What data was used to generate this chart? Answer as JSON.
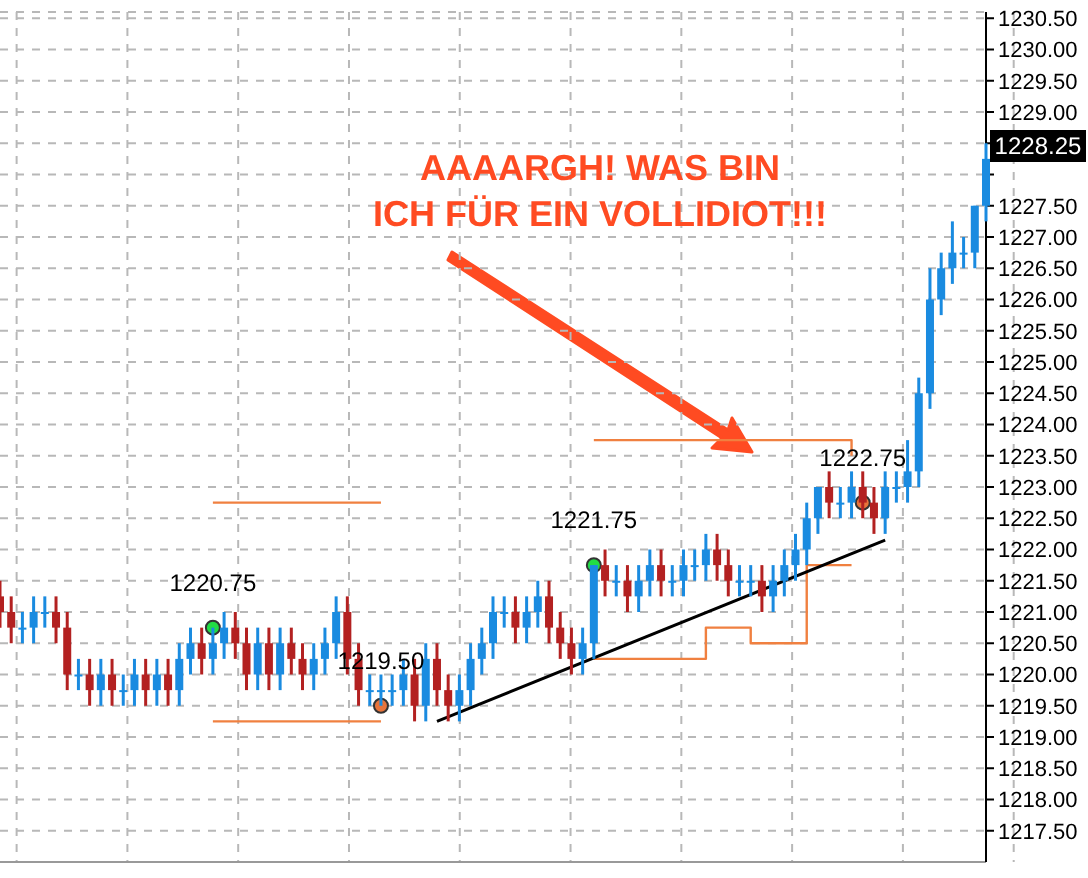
{
  "chart_data": {
    "type": "candlestick",
    "tick_labels": "y",
    "grid": true,
    "ylim": [
      1217.0,
      1230.6
    ],
    "yticks": [
      {
        "value": 1217.5,
        "label": "1217.50"
      },
      {
        "value": 1218,
        "label": "1218.00"
      },
      {
        "value": 1218.5,
        "label": "1218.50"
      },
      {
        "value": 1219,
        "label": "1219.00"
      },
      {
        "value": 1219.5,
        "label": "1219.50"
      },
      {
        "value": 1220,
        "label": "1220.00"
      },
      {
        "value": 1220.5,
        "label": "1220.50"
      },
      {
        "value": 1221,
        "label": "1221.00"
      },
      {
        "value": 1221.5,
        "label": "1221.50"
      },
      {
        "value": 1222,
        "label": "1222.00"
      },
      {
        "value": 1222.5,
        "label": "1222.50"
      },
      {
        "value": 1223,
        "label": "1223.00"
      },
      {
        "value": 1223.5,
        "label": "1223.50"
      },
      {
        "value": 1224,
        "label": "1224.00"
      },
      {
        "value": 1224.5,
        "label": "1224.50"
      },
      {
        "value": 1225,
        "label": "1225.00"
      },
      {
        "value": 1225.5,
        "label": "1225.50"
      },
      {
        "value": 1226,
        "label": "1226.00"
      },
      {
        "value": 1226.5,
        "label": "1226.50"
      },
      {
        "value": 1227,
        "label": "1227.00"
      },
      {
        "value": 1227.5,
        "label": "1227.50"
      },
      {
        "value": 1228,
        "label": null
      },
      {
        "value": 1228.5,
        "label": null
      },
      {
        "value": 1229,
        "label": "1229.00"
      },
      {
        "value": 1229.5,
        "label": "1229.50"
      },
      {
        "value": 1230,
        "label": "1230.00"
      },
      {
        "value": 1230.5,
        "label": "1230.50"
      }
    ],
    "categories": [
      null,
      null,
      null,
      null,
      null,
      null,
      null,
      null,
      null,
      null,
      null,
      null,
      null,
      null,
      null,
      null,
      null,
      null,
      null,
      null,
      null,
      null,
      null,
      null,
      null,
      null,
      null,
      null,
      null,
      null,
      null,
      null,
      null,
      null,
      null,
      null,
      null,
      null,
      null,
      null,
      null,
      null,
      null,
      null,
      null,
      null,
      null,
      null,
      null,
      null,
      null,
      null,
      null,
      null,
      null,
      null,
      null,
      null,
      null,
      null,
      null,
      null,
      null,
      null,
      null,
      null,
      null,
      null,
      null,
      null,
      null,
      null,
      null,
      null,
      null,
      null,
      null,
      null,
      null,
      null,
      null,
      null,
      null,
      null,
      null,
      null,
      null,
      null,
      null
    ],
    "annotations": [
      "AAAARGH! WAS BIN\nICH FÜR EIN VOLLIDIOT!!!",
      "1228.25"
    ],
    "series": [
      {
        "ohlc": [
          [
            1221.25,
            1221.5,
            1220.75,
            1221.0
          ],
          [
            1221.0,
            1221.25,
            1220.5,
            1220.75
          ],
          [
            1220.75,
            1221.0,
            1220.5,
            1220.75
          ],
          [
            1220.75,
            1221.25,
            1220.5,
            1221.0
          ],
          [
            1221.0,
            1221.25,
            1220.75,
            1221.0
          ],
          [
            1221.0,
            1221.25,
            1220.5,
            1220.75
          ],
          [
            1220.75,
            1221.0,
            1219.75,
            1220.0
          ],
          [
            1220.0,
            1220.25,
            1219.75,
            1220.0
          ],
          [
            1220.0,
            1220.25,
            1219.5,
            1219.75
          ],
          [
            1219.75,
            1220.25,
            1219.5,
            1220.0
          ],
          [
            1220.0,
            1220.25,
            1219.5,
            1219.75
          ],
          [
            1219.75,
            1220.0,
            1219.5,
            1219.75
          ],
          [
            1219.75,
            1220.25,
            1219.5,
            1220.0
          ],
          [
            1220.0,
            1220.25,
            1219.5,
            1219.75
          ],
          [
            1219.75,
            1220.25,
            1219.5,
            1220.0
          ],
          [
            1220.0,
            1220.25,
            1219.5,
            1219.75
          ],
          [
            1219.75,
            1220.5,
            1219.5,
            1220.25
          ],
          [
            1220.25,
            1220.75,
            1220.0,
            1220.5
          ],
          [
            1220.5,
            1220.75,
            1220.0,
            1220.25
          ],
          [
            1220.25,
            1220.75,
            1220.0,
            1220.5
          ],
          [
            1220.5,
            1221.0,
            1220.25,
            1220.75
          ],
          [
            1220.75,
            1221.0,
            1220.25,
            1220.5
          ],
          [
            1220.5,
            1220.75,
            1219.75,
            1220.0
          ],
          [
            1220.0,
            1220.75,
            1219.75,
            1220.5
          ],
          [
            1220.5,
            1220.75,
            1219.75,
            1220.0
          ],
          [
            1220.0,
            1220.75,
            1219.75,
            1220.5
          ],
          [
            1220.5,
            1220.75,
            1220.0,
            1220.25
          ],
          [
            1220.25,
            1220.5,
            1219.75,
            1220.0
          ],
          [
            1220.0,
            1220.5,
            1219.75,
            1220.25
          ],
          [
            1220.25,
            1220.75,
            1220.0,
            1220.5
          ],
          [
            1220.5,
            1221.25,
            1220.25,
            1221.0
          ],
          [
            1221.0,
            1221.25,
            1220.0,
            1220.25
          ],
          [
            1220.25,
            1220.5,
            1219.5,
            1219.75
          ],
          [
            1219.75,
            1220.0,
            1219.5,
            1219.75
          ],
          [
            1219.75,
            1220.0,
            1219.5,
            1219.75
          ],
          [
            1219.75,
            1220.0,
            1219.5,
            1219.75
          ],
          [
            1219.75,
            1220.25,
            1219.5,
            1220.0
          ],
          [
            1220.0,
            1220.25,
            1219.25,
            1219.5
          ],
          [
            1219.5,
            1220.5,
            1219.25,
            1220.25
          ],
          [
            1220.25,
            1220.5,
            1219.5,
            1219.75
          ],
          [
            1219.75,
            1220.0,
            1219.25,
            1219.5
          ],
          [
            1219.5,
            1220.0,
            1219.25,
            1219.75
          ],
          [
            1219.75,
            1220.5,
            1219.5,
            1220.25
          ],
          [
            1220.25,
            1220.75,
            1220.0,
            1220.5
          ],
          [
            1220.5,
            1221.25,
            1220.25,
            1221.0
          ],
          [
            1221.0,
            1221.25,
            1220.75,
            1221.0
          ],
          [
            1221.0,
            1221.25,
            1220.5,
            1220.75
          ],
          [
            1220.75,
            1221.25,
            1220.5,
            1221.0
          ],
          [
            1221.0,
            1221.5,
            1220.75,
            1221.25
          ],
          [
            1221.25,
            1221.5,
            1220.5,
            1220.75
          ],
          [
            1220.75,
            1221.0,
            1220.25,
            1220.5
          ],
          [
            1220.5,
            1220.75,
            1220.0,
            1220.25
          ],
          [
            1220.25,
            1220.75,
            1220.0,
            1220.5
          ],
          [
            1220.5,
            1221.75,
            1220.25,
            1221.75
          ],
          [
            1221.75,
            1222.0,
            1221.25,
            1221.5
          ],
          [
            1221.5,
            1221.75,
            1221.25,
            1221.5
          ],
          [
            1221.5,
            1221.75,
            1221.0,
            1221.25
          ],
          [
            1221.25,
            1221.75,
            1221.0,
            1221.5
          ],
          [
            1221.5,
            1222.0,
            1221.25,
            1221.75
          ],
          [
            1221.75,
            1222.0,
            1221.25,
            1221.5
          ],
          [
            1221.5,
            1221.75,
            1221.25,
            1221.5
          ],
          [
            1221.5,
            1222.0,
            1221.25,
            1221.75
          ],
          [
            1221.75,
            1222.0,
            1221.5,
            1221.75
          ],
          [
            1221.75,
            1222.25,
            1221.5,
            1222.0
          ],
          [
            1222.0,
            1222.25,
            1221.5,
            1221.75
          ],
          [
            1221.75,
            1222.0,
            1221.25,
            1221.5
          ],
          [
            1221.5,
            1221.75,
            1221.25,
            1221.5
          ],
          [
            1221.5,
            1221.75,
            1221.25,
            1221.5
          ],
          [
            1221.5,
            1221.75,
            1221.0,
            1221.25
          ],
          [
            1221.25,
            1221.75,
            1221.0,
            1221.5
          ],
          [
            1221.5,
            1222.0,
            1221.25,
            1221.75
          ],
          [
            1221.75,
            1222.25,
            1221.5,
            1222.0
          ],
          [
            1222.0,
            1222.75,
            1221.75,
            1222.5
          ],
          [
            1222.5,
            1223.0,
            1222.25,
            1223.0
          ],
          [
            1223.0,
            1223.25,
            1222.5,
            1222.75
          ],
          [
            1222.75,
            1223.0,
            1222.5,
            1222.75
          ],
          [
            1222.75,
            1223.25,
            1222.5,
            1223.0
          ],
          [
            1223.0,
            1223.25,
            1222.5,
            1222.75
          ],
          [
            1222.75,
            1223.0,
            1222.25,
            1222.5
          ],
          [
            1222.5,
            1223.25,
            1222.25,
            1223.0
          ],
          [
            1223.0,
            1223.25,
            1222.75,
            1223.0
          ],
          [
            1223.0,
            1223.75,
            1222.75,
            1223.25
          ],
          [
            1223.25,
            1224.75,
            1223.0,
            1224.5
          ],
          [
            1224.5,
            1226.5,
            1224.25,
            1226.0
          ],
          [
            1226.0,
            1226.75,
            1225.75,
            1226.5
          ],
          [
            1226.5,
            1227.25,
            1226.25,
            1226.75
          ],
          [
            1226.75,
            1227.0,
            1226.5,
            1226.75
          ],
          [
            1226.75,
            1227.5,
            1226.5,
            1227.5
          ],
          [
            1227.5,
            1228.5,
            1227.25,
            1228.25
          ]
        ],
        "colors": [
          "#b32121",
          "#b32121",
          "#1a8be0",
          "#1a8be0",
          "#1a8be0",
          "#b32121",
          "#b32121",
          "#1a8be0",
          "#b32121",
          "#1a8be0",
          "#b32121",
          "#1a8be0",
          "#1a8be0",
          "#b32121",
          "#1a8be0",
          "#b32121",
          "#1a8be0",
          "#1a8be0",
          "#b32121",
          "#1a8be0",
          "#1a8be0",
          "#b32121",
          "#b32121",
          "#1a8be0",
          "#b32121",
          "#1a8be0",
          "#b32121",
          "#b32121",
          "#1a8be0",
          "#1a8be0",
          "#1a8be0",
          "#b32121",
          "#b32121",
          "#1a8be0",
          "#1a8be0",
          "#1a8be0",
          "#1a8be0",
          "#b32121",
          "#1a8be0",
          "#b32121",
          "#b32121",
          "#1a8be0",
          "#1a8be0",
          "#1a8be0",
          "#1a8be0",
          "#1a8be0",
          "#b32121",
          "#1a8be0",
          "#1a8be0",
          "#b32121",
          "#b32121",
          "#b32121",
          "#1a8be0",
          "#1a8be0",
          "#b32121",
          "#1a8be0",
          "#b32121",
          "#1a8be0",
          "#1a8be0",
          "#b32121",
          "#1a8be0",
          "#1a8be0",
          "#1a8be0",
          "#1a8be0",
          "#b32121",
          "#b32121",
          "#1a8be0",
          "#1a8be0",
          "#b32121",
          "#1a8be0",
          "#1a8be0",
          "#1a8be0",
          "#1a8be0",
          "#1a8be0",
          "#b32121",
          "#1a8be0",
          "#1a8be0",
          "#b32121",
          "#b32121",
          "#1a8be0",
          "#1a8be0",
          "#1a8be0",
          "#1a8be0",
          "#1a8be0",
          "#1a8be0",
          "#1a8be0",
          "#1a8be0",
          "#1a8be0",
          "#1a8be0"
        ]
      },
      {
        "type": "step",
        "color": "#f08040",
        "values": [
          null,
          null,
          null,
          null,
          null,
          null,
          null,
          null,
          null,
          null,
          null,
          null,
          null,
          null,
          null,
          null,
          null,
          null,
          null,
          1222.75,
          1222.75,
          1222.75,
          1222.75,
          1222.75,
          1222.75,
          1222.75,
          1222.75,
          1222.75,
          1222.75,
          1222.75,
          1222.75,
          1222.75,
          1222.75,
          1222.75,
          1222.75,
          null,
          null,
          null,
          null,
          null,
          null,
          null,
          null,
          null,
          null,
          null,
          null,
          null,
          null,
          null,
          null,
          null,
          null,
          null,
          null,
          null,
          null,
          null,
          null,
          null,
          null,
          null,
          null,
          null,
          null,
          null,
          null,
          null,
          null,
          null,
          null,
          null,
          null,
          null,
          null,
          null,
          null,
          null,
          null,
          null,
          null,
          null,
          null,
          null,
          null,
          null,
          null,
          null,
          null
        ]
      },
      {
        "type": "step",
        "color": "#f08040",
        "values": [
          null,
          null,
          null,
          null,
          null,
          null,
          null,
          null,
          null,
          null,
          null,
          null,
          null,
          null,
          null,
          null,
          null,
          null,
          null,
          1219.25,
          1219.25,
          1219.25,
          1219.25,
          1219.25,
          1219.25,
          1219.25,
          1219.25,
          1219.25,
          1219.25,
          1219.25,
          1219.25,
          1219.25,
          1219.25,
          1219.25,
          1219.25,
          null,
          null,
          null,
          null,
          null,
          null,
          null,
          null,
          null,
          null,
          null,
          null,
          null,
          null,
          null,
          null,
          null,
          null,
          null,
          null,
          null,
          null,
          null,
          null,
          null,
          null,
          null,
          null,
          null,
          null,
          null,
          null,
          null,
          null,
          null,
          null,
          null,
          null,
          null,
          null,
          null,
          null,
          null,
          null,
          null,
          null,
          null,
          null,
          null,
          null,
          null,
          null,
          null,
          null
        ]
      },
      {
        "type": "step",
        "color": "#f08040",
        "values": [
          null,
          null,
          null,
          null,
          null,
          null,
          null,
          null,
          null,
          null,
          null,
          null,
          null,
          null,
          null,
          null,
          null,
          null,
          null,
          null,
          null,
          null,
          null,
          null,
          null,
          null,
          null,
          null,
          null,
          null,
          null,
          null,
          null,
          null,
          null,
          null,
          null,
          null,
          null,
          null,
          null,
          null,
          null,
          null,
          null,
          null,
          null,
          null,
          null,
          null,
          null,
          null,
          null,
          1223.75,
          1223.75,
          1223.75,
          1223.75,
          1223.75,
          1223.75,
          1223.75,
          1223.75,
          1223.75,
          1223.75,
          1223.75,
          1223.75,
          1223.75,
          1223.75,
          1223.75,
          1223.75,
          1223.75,
          1223.75,
          1223.75,
          1223.75,
          1223.75,
          1223.75,
          1223.75,
          1223.5,
          null,
          null,
          null,
          null,
          null,
          null,
          null,
          null,
          null,
          null,
          null,
          null
        ]
      },
      {
        "type": "step",
        "color": "#f08040",
        "values": [
          null,
          null,
          null,
          null,
          null,
          null,
          null,
          null,
          null,
          null,
          null,
          null,
          null,
          null,
          null,
          null,
          null,
          null,
          null,
          null,
          null,
          null,
          null,
          null,
          null,
          null,
          null,
          null,
          null,
          null,
          null,
          null,
          null,
          null,
          null,
          null,
          null,
          null,
          null,
          null,
          null,
          null,
          null,
          null,
          null,
          null,
          null,
          null,
          null,
          null,
          null,
          null,
          null,
          1220.25,
          1220.25,
          1220.25,
          1220.25,
          1220.25,
          1220.25,
          1220.25,
          1220.25,
          1220.25,
          1220.25,
          1220.75,
          1220.75,
          1220.75,
          1220.75,
          1220.5,
          1220.5,
          1220.5,
          1220.5,
          1220.5,
          1221.75,
          1221.75,
          1221.75,
          1221.75,
          1221.75,
          null,
          null,
          null,
          null,
          null,
          null,
          null,
          null,
          null,
          null,
          null,
          null
        ]
      },
      {
        "type": "line",
        "color": "#000000",
        "values": [
          null,
          null,
          null,
          null,
          null,
          null,
          null,
          null,
          null,
          null,
          null,
          null,
          null,
          null,
          null,
          null,
          null,
          null,
          null,
          null,
          null,
          null,
          null,
          null,
          null,
          null,
          null,
          null,
          null,
          null,
          null,
          null,
          null,
          null,
          null,
          null,
          null,
          null,
          null,
          1219.25,
          null,
          null,
          null,
          null,
          null,
          null,
          null,
          null,
          null,
          null,
          null,
          null,
          null,
          null,
          null,
          null,
          null,
          null,
          null,
          null,
          null,
          null,
          null,
          null,
          null,
          null,
          null,
          null,
          null,
          null,
          null,
          null,
          null,
          null,
          null,
          null,
          null,
          null,
          null,
          1222.15,
          null,
          null,
          null,
          null,
          null,
          null,
          null,
          null,
          null
        ]
      },
      {
        "type": "scatter",
        "marker": "circle",
        "color": "#22dd44",
        "values": [
          null,
          null,
          null,
          null,
          null,
          null,
          null,
          null,
          null,
          null,
          null,
          null,
          null,
          null,
          null,
          null,
          null,
          null,
          null,
          1220.75,
          null,
          null,
          null,
          null,
          null,
          null,
          null,
          null,
          null,
          null,
          null,
          null,
          null,
          null,
          null,
          null,
          null,
          null,
          null,
          null,
          null,
          null,
          null,
          null,
          null,
          null,
          null,
          null,
          null,
          null,
          null,
          null,
          null,
          1221.75,
          null,
          null,
          null,
          null,
          null,
          null,
          null,
          null,
          null,
          null,
          null,
          null,
          null,
          null,
          null,
          null,
          null,
          null,
          null,
          null,
          null,
          null,
          null,
          null,
          null,
          null,
          null,
          null,
          null,
          null,
          null,
          null,
          null,
          null,
          null
        ],
        "value_labels": [
          null,
          null,
          null,
          null,
          null,
          null,
          null,
          null,
          null,
          null,
          null,
          null,
          null,
          null,
          null,
          null,
          null,
          null,
          null,
          "1220.75",
          null,
          null,
          null,
          null,
          null,
          null,
          null,
          null,
          null,
          null,
          null,
          null,
          null,
          null,
          null,
          null,
          null,
          null,
          null,
          null,
          null,
          null,
          null,
          null,
          null,
          null,
          null,
          null,
          null,
          null,
          null,
          null,
          null,
          "1221.75",
          null,
          null,
          null,
          null,
          null,
          null,
          null,
          null,
          null,
          null,
          null,
          null,
          null,
          null,
          null,
          null,
          null,
          null,
          null,
          null,
          null,
          null,
          null,
          null,
          null,
          null,
          null,
          null,
          null,
          null,
          null,
          null,
          null,
          null,
          null
        ]
      },
      {
        "type": "scatter",
        "marker": "circle",
        "color": "#e8743b",
        "values": [
          null,
          null,
          null,
          null,
          null,
          null,
          null,
          null,
          null,
          null,
          null,
          null,
          null,
          null,
          null,
          null,
          null,
          null,
          null,
          null,
          null,
          null,
          null,
          null,
          null,
          null,
          null,
          null,
          null,
          null,
          null,
          null,
          null,
          null,
          1219.5,
          null,
          null,
          null,
          null,
          null,
          null,
          null,
          null,
          null,
          null,
          null,
          null,
          null,
          null,
          null,
          null,
          null,
          null,
          null,
          null,
          null,
          null,
          null,
          null,
          null,
          null,
          null,
          null,
          null,
          null,
          null,
          null,
          null,
          null,
          null,
          null,
          null,
          null,
          null,
          null,
          null,
          null,
          1222.75,
          null,
          null,
          null,
          null,
          null,
          null,
          null,
          null,
          null,
          null,
          null
        ],
        "value_labels": [
          null,
          null,
          null,
          null,
          null,
          null,
          null,
          null,
          null,
          null,
          null,
          null,
          null,
          null,
          null,
          null,
          null,
          null,
          null,
          null,
          null,
          null,
          null,
          null,
          null,
          null,
          null,
          null,
          null,
          null,
          null,
          null,
          null,
          null,
          "1219.50",
          null,
          null,
          null,
          null,
          null,
          null,
          null,
          null,
          null,
          null,
          null,
          null,
          null,
          null,
          null,
          null,
          null,
          null,
          null,
          null,
          null,
          null,
          null,
          null,
          null,
          null,
          null,
          null,
          null,
          null,
          null,
          null,
          null,
          null,
          null,
          null,
          null,
          null,
          null,
          null,
          null,
          null,
          "1222.75",
          null,
          null,
          null,
          null,
          null,
          null,
          null,
          null,
          null,
          null,
          null
        ]
      }
    ]
  }
}
